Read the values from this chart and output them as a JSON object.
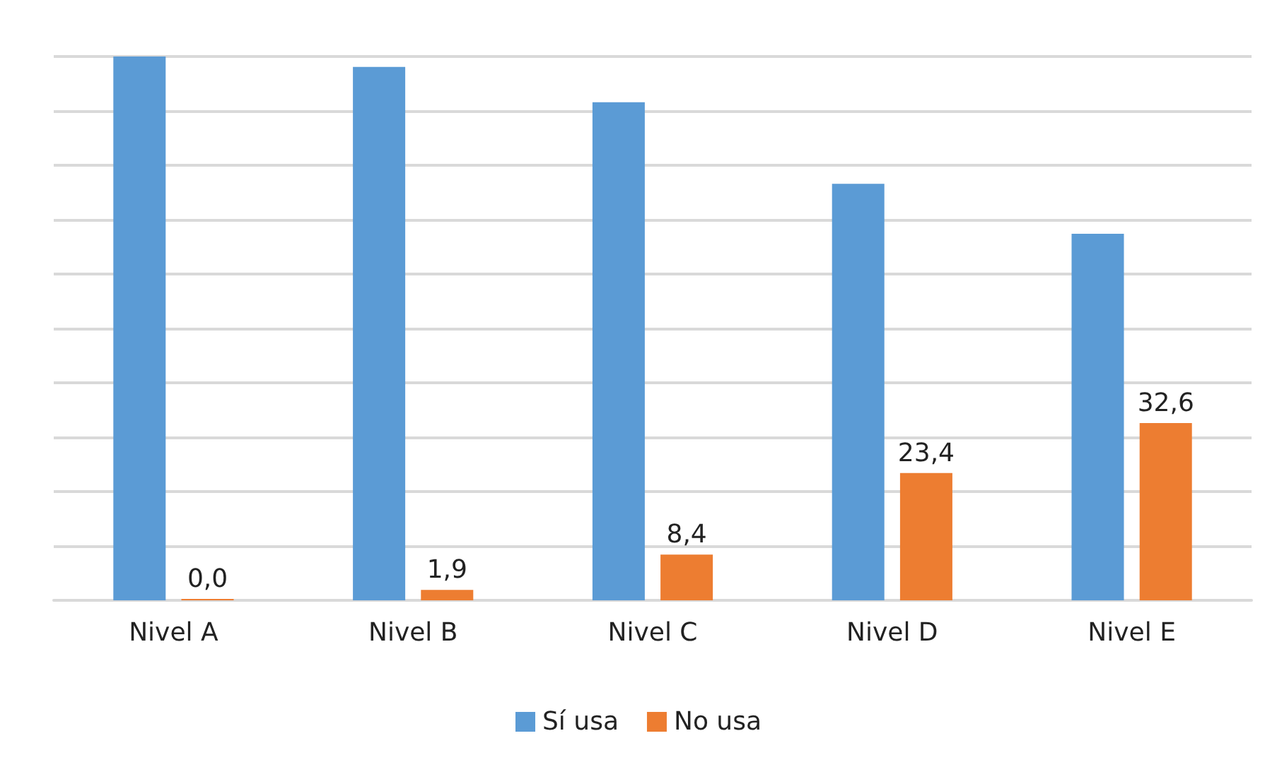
{
  "chart_data": {
    "type": "bar",
    "categories": [
      "Nivel A",
      "Nivel B",
      "Nivel C",
      "Nivel D",
      "Nivel E"
    ],
    "series": [
      {
        "name": "Sí usa",
        "color": "#5b9bd5",
        "values": [
          100,
          98.1,
          91.6,
          76.6,
          67.4
        ]
      },
      {
        "name": "No usa",
        "color": "#ed7d31",
        "values": [
          0.0,
          1.9,
          8.4,
          23.4,
          32.6
        ],
        "value_labels": [
          "0,0",
          "1,9",
          "8,4",
          "23,4",
          "32,6"
        ]
      }
    ],
    "ylim": [
      0,
      100
    ],
    "yticks": [
      {
        "value": 0,
        "label": null
      },
      {
        "value": 10,
        "label": null
      },
      {
        "value": 20,
        "label": null
      },
      {
        "value": 30,
        "label": null
      },
      {
        "value": 40,
        "label": null
      },
      {
        "value": 50,
        "label": null
      },
      {
        "value": 60,
        "label": null
      },
      {
        "value": 70,
        "label": null
      },
      {
        "value": 80,
        "label": null
      },
      {
        "value": 90,
        "label": null
      },
      {
        "value": 100,
        "label": null
      }
    ],
    "tick_labels": "x",
    "grid": "y",
    "legend": "bottom"
  }
}
